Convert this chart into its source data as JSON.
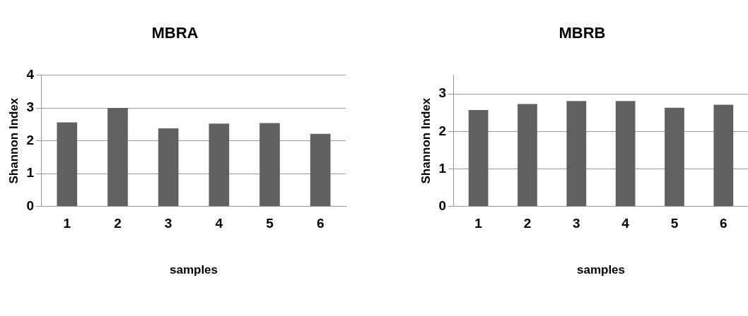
{
  "chart_data": [
    {
      "type": "bar",
      "title": "MBRA",
      "xlabel": "samples",
      "ylabel": "Shannon Index",
      "categories": [
        "1",
        "2",
        "3",
        "4",
        "5",
        "6"
      ],
      "values": [
        2.56,
        3.0,
        2.38,
        2.52,
        2.54,
        2.21
      ],
      "color": "#606060",
      "ylim": [
        0,
        4
      ],
      "yticks": [
        0,
        1,
        2,
        3,
        4
      ],
      "grid": "y"
    },
    {
      "type": "bar",
      "title": "MBRB",
      "xlabel": "samples",
      "ylabel": "Shannon Index",
      "categories": [
        "1",
        "2",
        "3",
        "4",
        "5",
        "6"
      ],
      "values": [
        2.57,
        2.73,
        2.81,
        2.81,
        2.63,
        2.71
      ],
      "color": "#606060",
      "ylim": [
        0,
        3.5
      ],
      "yticks": [
        0,
        1,
        2,
        3
      ],
      "grid": "y"
    }
  ]
}
